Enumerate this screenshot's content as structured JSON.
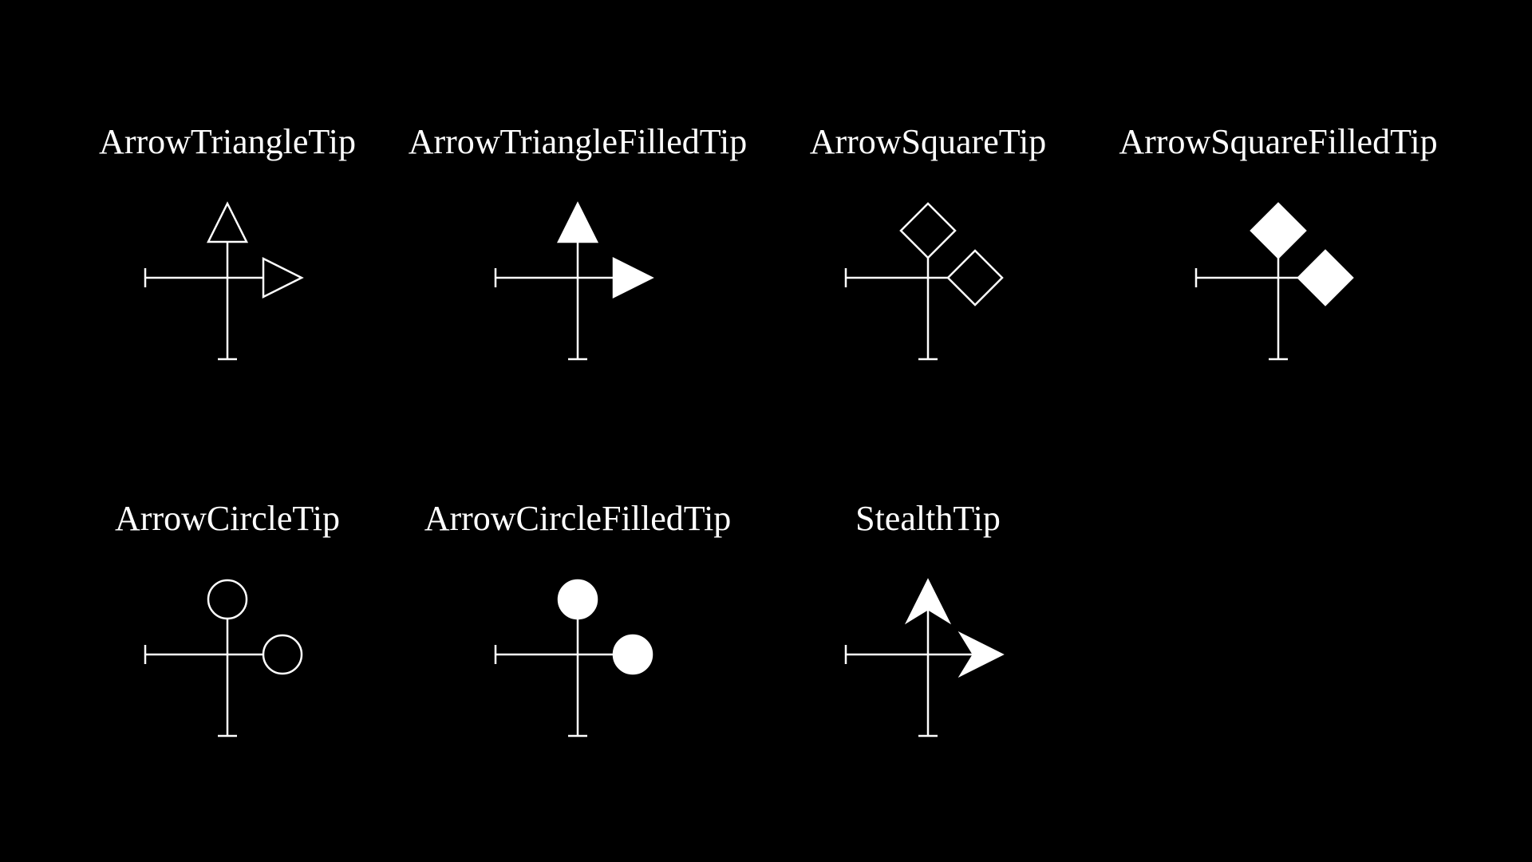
{
  "colors": {
    "background": "#000000",
    "foreground": "#ffffff"
  },
  "tips": [
    {
      "label": "ArrowTriangleTip",
      "shape": "triangle",
      "filled": false
    },
    {
      "label": "ArrowTriangleFilledTip",
      "shape": "triangle",
      "filled": true
    },
    {
      "label": "ArrowSquareTip",
      "shape": "square",
      "filled": false
    },
    {
      "label": "ArrowSquareFilledTip",
      "shape": "square",
      "filled": true
    },
    {
      "label": "ArrowCircleTip",
      "shape": "circle",
      "filled": false
    },
    {
      "label": "ArrowCircleFilledTip",
      "shape": "circle",
      "filled": true
    },
    {
      "label": "StealthTip",
      "shape": "stealth",
      "filled": true
    }
  ]
}
